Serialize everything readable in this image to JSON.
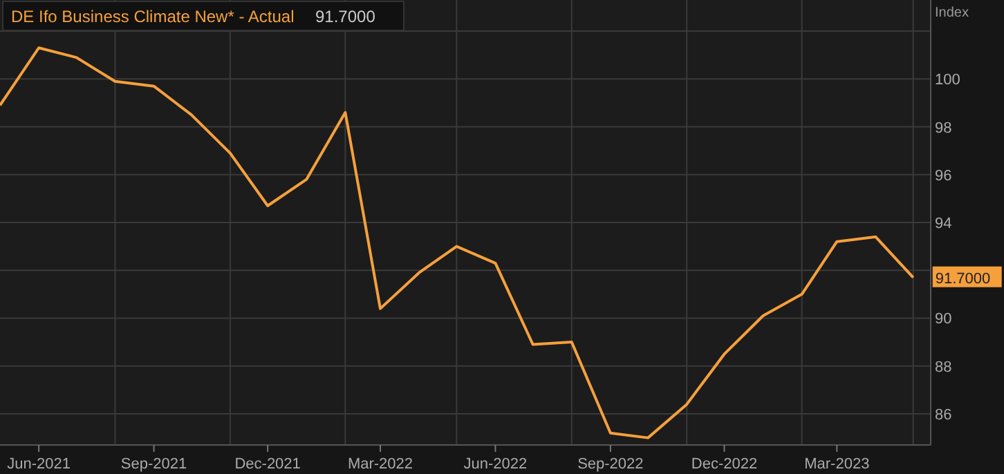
{
  "chart_data": {
    "type": "line",
    "ylabel": "Index",
    "x": [
      "2021-05",
      "2021-06",
      "2021-07",
      "2021-08",
      "2021-09",
      "2021-10",
      "2021-11",
      "2021-12",
      "2022-01",
      "2022-02",
      "2022-03",
      "2022-04",
      "2022-05",
      "2022-06",
      "2022-07",
      "2022-08",
      "2022-09",
      "2022-10",
      "2022-11",
      "2022-12",
      "2023-01",
      "2023-02",
      "2023-03",
      "2023-04",
      "2023-05"
    ],
    "series": [
      {
        "name": "DE Ifo Business Climate New* - Actual",
        "color": "#f5a03c",
        "values": [
          98.9,
          101.3,
          100.9,
          99.9,
          99.7,
          98.5,
          96.9,
          94.7,
          95.8,
          98.6,
          90.4,
          91.9,
          93.0,
          92.3,
          88.9,
          89.0,
          85.2,
          85.0,
          86.4,
          88.5,
          90.1,
          91.0,
          93.2,
          93.4,
          91.7
        ]
      }
    ],
    "xlim": [
      "2021-05",
      "2023-05-15"
    ],
    "xticks": [
      {
        "value": "2021-06",
        "label": "Jun-2021"
      },
      {
        "value": "2021-08",
        "label": null
      },
      {
        "value": "2021-09",
        "label": "Sep-2021"
      },
      {
        "value": "2021-11",
        "label": null
      },
      {
        "value": "2021-12",
        "label": "Dec-2021"
      },
      {
        "value": "2022-02",
        "label": null
      },
      {
        "value": "2022-03",
        "label": "Mar-2022"
      },
      {
        "value": "2022-05",
        "label": null
      },
      {
        "value": "2022-06",
        "label": "Jun-2022"
      },
      {
        "value": "2022-08",
        "label": null
      },
      {
        "value": "2022-09",
        "label": "Sep-2022"
      },
      {
        "value": "2022-11",
        "label": null
      },
      {
        "value": "2022-12",
        "label": "Dec-2022"
      },
      {
        "value": "2023-02",
        "label": null
      },
      {
        "value": "2023-03",
        "label": "Mar-2023"
      },
      {
        "value": "2023-05",
        "label": null
      }
    ],
    "ylim": [
      84.7,
      103.3
    ],
    "yticks": [
      86,
      88,
      90,
      {
        "value": 92,
        "label": null
      },
      94,
      96,
      98,
      100,
      {
        "value": 102,
        "label": null
      }
    ],
    "grid": true,
    "legend": "top left",
    "annotations": [
      "91.7000",
      {
        "text": "91.7000",
        "x": "2023-05",
        "y": 91.7
      }
    ]
  }
}
